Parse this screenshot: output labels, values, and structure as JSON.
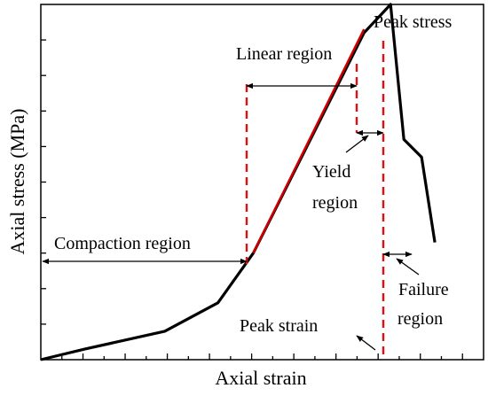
{
  "chart_data": {
    "type": "line",
    "title": "",
    "xlabel": "Axial strain",
    "ylabel": "Axial stress (MPa)",
    "x_tick_labels": "none",
    "y_tick_labels": "none",
    "grid": false,
    "legend": "none",
    "xlim": [
      0,
      100
    ],
    "ylim": [
      0,
      100
    ],
    "units_note": "",
    "series": [
      {
        "color": "#000000",
        "points": [
          {
            "x": 0,
            "y": 0
          },
          {
            "x": 10,
            "y": 3
          },
          {
            "x": 28,
            "y": 8
          },
          {
            "x": 40,
            "y": 16
          },
          {
            "x": 48,
            "y": 30
          },
          {
            "x": 73,
            "y": 92
          },
          {
            "x": 79,
            "y": 100
          },
          {
            "x": 82,
            "y": 62
          },
          {
            "x": 86,
            "y": 57
          },
          {
            "x": 89,
            "y": 33
          }
        ]
      },
      {
        "color": "#cc0000",
        "points": [
          {
            "x": 48,
            "y": 30
          },
          {
            "x": 73,
            "y": 93
          }
        ]
      }
    ],
    "annotations": {
      "peak_stress": "Peak stress",
      "linear_region": "Linear region",
      "yield_region_line1": "Yield",
      "yield_region_line2": "region",
      "compaction_region": "Compaction region",
      "failure_region_line1": "Failure",
      "failure_region_line2": "region",
      "peak_strain": "Peak strain"
    },
    "guide_color": "#dd1111"
  }
}
